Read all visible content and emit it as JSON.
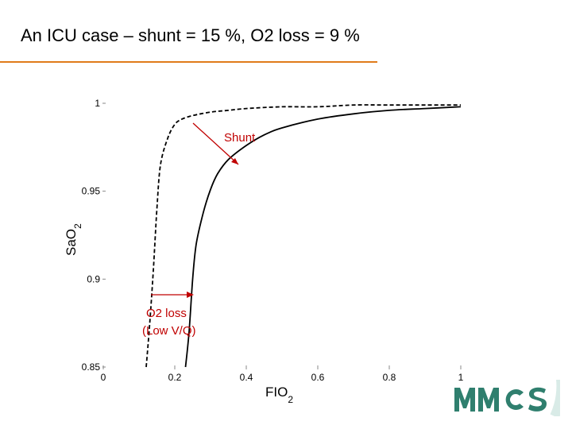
{
  "slide": {
    "title": "An ICU case – shunt = 15 %,  O2 loss = 9 %",
    "rule_color": "#e07b1a"
  },
  "logo": {
    "text": "MMCS",
    "color": "#2f7f6e",
    "icon": "mmcs-logo"
  },
  "chart_data": {
    "type": "line",
    "xlabel": "FIO",
    "xlabel_sub": "2",
    "ylabel": "SaO",
    "ylabel_sub": "2",
    "xlim": [
      0,
      1
    ],
    "ylim": [
      0.85,
      1.0
    ],
    "x_ticks": [
      0,
      0.2,
      0.4,
      0.6,
      0.8,
      1
    ],
    "x_tick_labels": [
      "0",
      "0.2",
      "0.4",
      "0.6",
      "0.8",
      "1"
    ],
    "y_ticks": [
      0.85,
      0.9,
      0.95,
      1
    ],
    "y_tick_labels": [
      "0.85",
      "0.9",
      "0.95",
      "1"
    ],
    "grid": false,
    "series": [
      {
        "style": "dashed",
        "x": [
          0.12,
          0.13,
          0.14,
          0.15,
          0.16,
          0.18,
          0.2,
          0.22,
          0.25,
          0.3,
          0.35,
          0.4,
          0.5,
          0.6,
          0.7,
          0.8,
          0.9,
          1.0
        ],
        "y": [
          0.85,
          0.875,
          0.905,
          0.94,
          0.965,
          0.98,
          0.988,
          0.991,
          0.993,
          0.995,
          0.996,
          0.997,
          0.998,
          0.998,
          0.999,
          0.999,
          0.999,
          0.999
        ]
      },
      {
        "style": "solid",
        "x": [
          0.23,
          0.24,
          0.25,
          0.26,
          0.28,
          0.3,
          0.32,
          0.35,
          0.4,
          0.45,
          0.5,
          0.6,
          0.7,
          0.8,
          0.9,
          1.0
        ],
        "y": [
          0.85,
          0.87,
          0.9,
          0.92,
          0.938,
          0.951,
          0.96,
          0.968,
          0.976,
          0.982,
          0.986,
          0.991,
          0.994,
          0.996,
          0.997,
          0.998
        ]
      }
    ],
    "annotations": [
      {
        "text": "Shunt",
        "color": "#c00000"
      },
      {
        "text": "O2 loss",
        "color": "#c00000"
      },
      {
        "text": "(Low V/Q)",
        "color": "#c00000"
      }
    ]
  }
}
